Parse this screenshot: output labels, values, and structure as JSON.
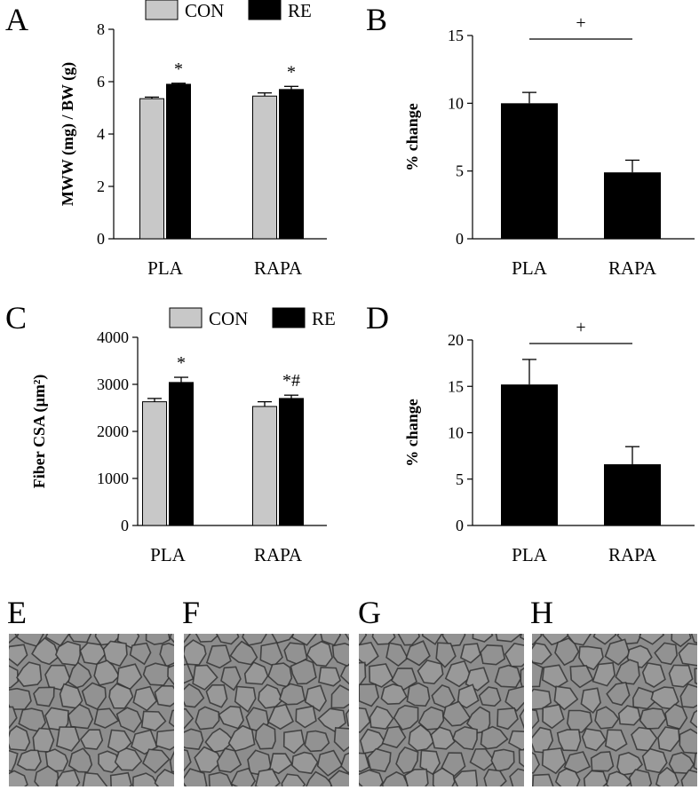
{
  "chart_data": [
    {
      "panel": "A",
      "type": "bar",
      "categories": [
        "PLA",
        "RAPA"
      ],
      "series": [
        {
          "name": "CON",
          "values": [
            5.35,
            5.45
          ],
          "errors": [
            0.06,
            0.12
          ]
        },
        {
          "name": "RE",
          "values": [
            5.9,
            5.7
          ],
          "errors": [
            0.04,
            0.12
          ]
        }
      ],
      "annotations": [
        [
          "",
          "*"
        ],
        [
          "",
          "*"
        ]
      ],
      "ylabel": "MWW (mg) / BW (g)",
      "ylim": [
        0,
        8
      ],
      "yticks": [
        "0",
        "2",
        "4",
        "6",
        "8"
      ],
      "legend": "top"
    },
    {
      "panel": "B",
      "type": "bar",
      "categories": [
        "PLA",
        "RAPA"
      ],
      "values": [
        10.0,
        4.9
      ],
      "errors": [
        0.8,
        0.9
      ],
      "ylabel": "% change",
      "ylim": [
        0,
        15
      ],
      "yticks": [
        "0",
        "5",
        "10",
        "15"
      ],
      "significance_mark": "+"
    },
    {
      "panel": "C",
      "type": "bar",
      "categories": [
        "PLA",
        "RAPA"
      ],
      "series": [
        {
          "name": "CON",
          "values": [
            2630,
            2530
          ],
          "errors": [
            70,
            100
          ]
        },
        {
          "name": "RE",
          "values": [
            3040,
            2700
          ],
          "errors": [
            110,
            70
          ]
        }
      ],
      "annotations": [
        [
          "",
          "*"
        ],
        [
          "",
          "*#"
        ]
      ],
      "ylabel": "Fiber CSA (µm²)",
      "ylim": [
        0,
        4000
      ],
      "yticks": [
        "0",
        "1000",
        "2000",
        "3000",
        "4000"
      ],
      "legend": "top"
    },
    {
      "panel": "D",
      "type": "bar",
      "categories": [
        "PLA",
        "RAPA"
      ],
      "values": [
        15.2,
        6.6
      ],
      "errors": [
        2.7,
        1.9
      ],
      "ylabel": "% change",
      "ylim": [
        0,
        20
      ],
      "yticks": [
        "0",
        "5",
        "10",
        "15",
        "20"
      ],
      "significance_mark": "+"
    }
  ],
  "micrographs": [
    "E",
    "F",
    "G",
    "H"
  ],
  "colors": {
    "con": "#c8c8c8",
    "re": "#000000",
    "tissue": "#8d8d8d"
  }
}
